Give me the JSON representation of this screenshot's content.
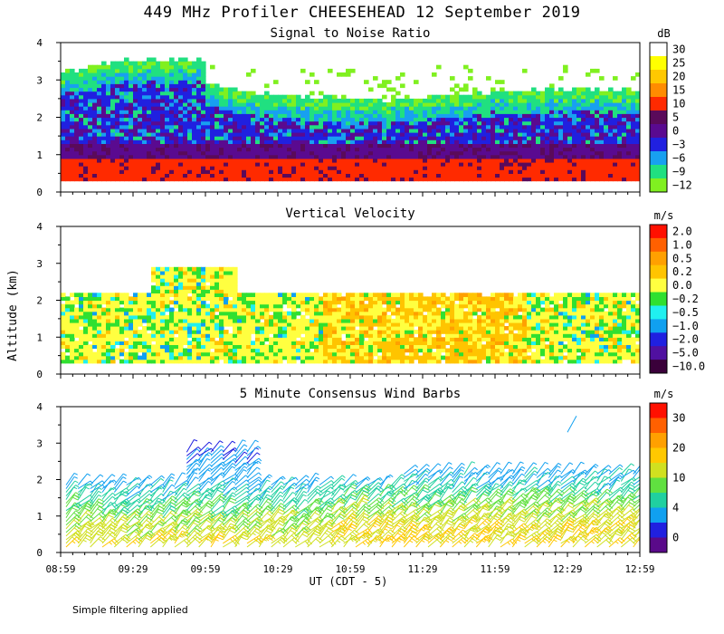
{
  "figure": {
    "title": "449 MHz Profiler CHEESEHEAD 12 September 2019",
    "ylabel": "Altitude (km)",
    "xlabel": "UT  (CDT - 5)",
    "footer": "Simple filtering applied",
    "x_ticks": [
      "08:59",
      "09:29",
      "09:59",
      "10:29",
      "10:59",
      "11:29",
      "11:59",
      "12:29",
      "12:59"
    ],
    "y_ticks": [
      "0",
      "1",
      "2",
      "3",
      "4"
    ]
  },
  "chart_data": [
    {
      "type": "heatmap",
      "title": "Signal to Noise Ratio",
      "unit": "dB",
      "xlim": [
        "08:59",
        "12:59"
      ],
      "ylim": [
        0,
        4
      ],
      "colorbar": {
        "labels": [
          "30",
          "25",
          "20",
          "15",
          "10",
          "5",
          "0",
          "−3",
          "−6",
          "−9",
          "−12"
        ],
        "colors": [
          "#ffffff",
          "#ffff00",
          "#ffc800",
          "#ff8c00",
          "#ff2a00",
          "#5a0a5a",
          "#5a0a90",
          "#2020e0",
          "#18a0f0",
          "#20e080",
          "#80f020"
        ]
      },
      "layers": [
        {
          "range": "0.3-0.8 km",
          "snr_db": "10 to 15"
        },
        {
          "range": "0.8-1.3 km",
          "snr_db": "0 to 5"
        },
        {
          "range": "1.3-2.2 km",
          "snr_db": "-6 to 0"
        },
        {
          "range": "2.2-3.0 km",
          "snr_db": "-12 to -6"
        },
        {
          "range": "3.0-4.0 km",
          "snr_db": "-12 (sparse)"
        }
      ]
    },
    {
      "type": "heatmap",
      "title": "Vertical Velocity",
      "unit": "m/s",
      "xlim": [
        "08:59",
        "12:59"
      ],
      "ylim": [
        0,
        4
      ],
      "colorbar": {
        "labels": [
          "2.0",
          "1.0",
          "0.5",
          "0.2",
          "0.0",
          "−0.2",
          "−0.5",
          "−1.0",
          "−2.0",
          "−5.0",
          "−10.0"
        ],
        "colors": [
          "#ff1000",
          "#ff6000",
          "#ffa000",
          "#ffc400",
          "#ffff40",
          "#30e030",
          "#20f0f0",
          "#10a0f0",
          "#2020e0",
          "#5010a0",
          "#3a003a"
        ]
      },
      "dominant_range": "-0.2 to 0.2 m/s",
      "data_top_km": 2.2
    },
    {
      "type": "wind_barbs",
      "title": "5 Minute Consensus Wind Barbs",
      "unit": "m/s",
      "xlim": [
        "08:59",
        "12:59"
      ],
      "ylim": [
        0,
        4
      ],
      "colorbar": {
        "labels": [
          "30",
          "20",
          "10",
          "4",
          "0"
        ],
        "colors": [
          "#ff1000",
          "#ff6000",
          "#ffa000",
          "#ffc800",
          "#d0e020",
          "#60e040",
          "#20d0a0",
          "#10a0f0",
          "#2020e0",
          "#5a0a8a"
        ]
      },
      "speed_profile": [
        {
          "height_km": 0.2,
          "speed_ms": 12
        },
        {
          "height_km": 0.8,
          "speed_ms": 10
        },
        {
          "height_km": 1.4,
          "speed_ms": 7
        },
        {
          "height_km": 1.9,
          "speed_ms": 5
        },
        {
          "height_km": 2.6,
          "speed_ms": 4
        },
        {
          "height_km": 3.6,
          "speed_ms": 3
        }
      ]
    }
  ]
}
